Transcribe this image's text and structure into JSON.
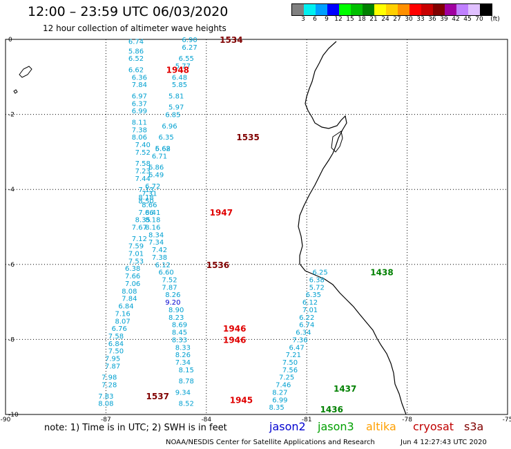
{
  "header": {
    "title": "12:00 – 23:59 UTC 06/03/2020",
    "subtitle": "12 hour collection of altimeter wave heights"
  },
  "color_scale": {
    "unit_label": "(ft)",
    "colors": [
      "#808080",
      "#00f0f0",
      "#00a0ff",
      "#0000ff",
      "#00ff00",
      "#00c000",
      "#008000",
      "#ffff00",
      "#ffd000",
      "#ff9000",
      "#ff0000",
      "#c80000",
      "#800000",
      "#a000a0",
      "#c080ff",
      "#e0c0ff",
      "#000000"
    ],
    "labels": [
      "3",
      "6",
      "9",
      "12",
      "15",
      "18",
      "21",
      "24",
      "27",
      "30",
      "33",
      "36",
      "39",
      "42",
      "45",
      "70"
    ]
  },
  "axes": {
    "x_ticks": [
      "-90",
      "-87",
      "-84",
      "-81",
      "-78",
      "-75"
    ],
    "y_ticks": [
      "0",
      "-2",
      "-4",
      "-6",
      "-8",
      "-10"
    ]
  },
  "chart_data": {
    "type": "scatter",
    "xlim": [
      -90,
      -75
    ],
    "ylim": [
      -10,
      0
    ],
    "grid": true,
    "tracks": [
      {
        "pass_time": "1534",
        "satellite": "cryosat",
        "points": [
          [
            -84.5,
            0
          ],
          [
            -84.5,
            -0.2
          ],
          [
            -84.6,
            -0.5
          ],
          [
            -84.7,
            -0.7
          ],
          [
            -84.8,
            -1.0
          ],
          [
            -84.8,
            -1.2
          ],
          [
            -84.9,
            -1.5
          ],
          [
            -84.9,
            -1.8
          ],
          [
            -85.0,
            -2.0
          ],
          [
            -85.1,
            -2.3
          ],
          [
            -85.2,
            -2.6
          ],
          [
            -85.3,
            -2.9
          ]
        ],
        "values": [
          "6.90",
          "6.27",
          "6.55",
          "5.77",
          "6.48",
          "5.85",
          "5.81",
          "5.97",
          "6.85",
          "6.96",
          "6.35",
          "5.68"
        ]
      },
      {
        "pass_time": "1535",
        "satellite": "cryosat",
        "points": [
          [
            -85.3,
            -2.9
          ],
          [
            -85.4,
            -3.1
          ],
          [
            -85.5,
            -3.4
          ],
          [
            -85.5,
            -3.6
          ],
          [
            -85.6,
            -3.9
          ],
          [
            -85.7,
            -4.1
          ],
          [
            -85.8,
            -4.3
          ],
          [
            -85.8,
            -4.6
          ],
          [
            -85.9,
            -4.8
          ],
          [
            -86.0,
            -5.0
          ],
          [
            -86.0,
            -5.3
          ],
          [
            -86.1,
            -5.5
          ],
          [
            -86.1,
            -5.7
          ],
          [
            -86.1,
            -5.9
          ]
        ],
        "values": [
          "6.62",
          "6.71",
          "6.86",
          "6.49",
          "6.72",
          "7.31",
          "8.50",
          "7.66",
          "8.35",
          "7.67",
          "7.12",
          "7.59",
          "7.01",
          "7.53"
        ]
      },
      {
        "pass_time": "1536",
        "satellite": "cryosat",
        "points": [
          [
            -86.2,
            -6.1
          ],
          [
            -86.2,
            -6.3
          ],
          [
            -86.2,
            -6.5
          ],
          [
            -86.3,
            -6.7
          ],
          [
            -86.3,
            -6.9
          ],
          [
            -86.4,
            -7.1
          ],
          [
            -86.5,
            -7.3
          ],
          [
            -86.5,
            -7.5
          ],
          [
            -86.6,
            -7.7
          ],
          [
            -86.7,
            -7.9
          ],
          [
            -86.7,
            -8.1
          ],
          [
            -86.7,
            -8.3
          ],
          [
            -86.8,
            -8.5
          ],
          [
            -86.8,
            -8.7
          ],
          [
            -86.9,
            -9.0
          ],
          [
            -86.9,
            -9.2
          ],
          [
            -87.0,
            -9.5
          ],
          [
            -87.0,
            -9.7
          ]
        ],
        "values": [
          "6.38",
          "7.66",
          "7.06",
          "8.08",
          "7.84",
          "6.84",
          "7.16",
          "8.07",
          "6.76",
          "7.58",
          "6.84",
          "7.50",
          "7.95",
          "7.87",
          "7.98",
          "7.28",
          "7.83",
          "8.08"
        ]
      },
      {
        "pass_time": "1537",
        "satellite": "cryosat",
        "points": [
          [
            -84.7,
            -9.4
          ],
          [
            -84.6,
            -9.7
          ]
        ],
        "values": [
          "9.34",
          "8.52"
        ]
      },
      {
        "pass_time": "1948",
        "satellite": "s3a",
        "points": [
          [
            -86.1,
            -0.05
          ],
          [
            -86.1,
            -0.3
          ],
          [
            -86.1,
            -0.5
          ],
          [
            -86.1,
            -0.8
          ],
          [
            -86.0,
            -1.0
          ],
          [
            -86.0,
            -1.2
          ],
          [
            -86.0,
            -1.5
          ],
          [
            -86.0,
            -1.7
          ],
          [
            -86.0,
            -1.9
          ],
          [
            -86.0,
            -2.2
          ],
          [
            -86.0,
            -2.4
          ],
          [
            -86.0,
            -2.6
          ],
          [
            -85.9,
            -2.8
          ],
          [
            -85.9,
            -3.0
          ],
          [
            -85.9,
            -3.3
          ],
          [
            -85.9,
            -3.5
          ],
          [
            -85.9,
            -3.7
          ],
          [
            -85.8,
            -4.0
          ],
          [
            -85.8,
            -4.2
          ]
        ],
        "values": [
          "6.74",
          "5.86",
          "6.52",
          "6.62",
          "6.36",
          "7.84",
          "6.97",
          "6.37",
          "6.99",
          "8.11",
          "7.38",
          "8.06",
          "7.40",
          "7.52",
          "7.58",
          "7.23",
          "7.44",
          "7.13",
          "8.18"
        ]
      },
      {
        "pass_time": "1947",
        "satellite": "s3a",
        "points": [
          [
            -85.7,
            -4.4
          ],
          [
            -85.6,
            -4.6
          ],
          [
            -85.6,
            -4.8
          ],
          [
            -85.6,
            -5.0
          ],
          [
            -85.5,
            -5.2
          ],
          [
            -85.5,
            -5.4
          ],
          [
            -85.4,
            -5.6
          ],
          [
            -85.4,
            -5.8
          ],
          [
            -85.3,
            -6.0
          ],
          [
            -85.2,
            -6.2
          ]
        ],
        "values": [
          "8.66",
          "8.41",
          "8.18",
          "8.16",
          "8.34",
          "7.34",
          "7.42",
          "7.38",
          "6.12",
          "6.60"
        ]
      },
      {
        "pass_time": "1946",
        "satellite": "s3a",
        "points": [
          [
            -85.1,
            -6.4
          ],
          [
            -85.1,
            -6.6
          ],
          [
            -85.0,
            -6.8
          ],
          [
            -85.0,
            -7.0
          ],
          [
            -84.9,
            -7.2
          ],
          [
            -84.9,
            -7.4
          ],
          [
            -84.8,
            -7.6
          ],
          [
            -84.8,
            -7.8
          ],
          [
            -84.8,
            -8.0
          ],
          [
            -84.7,
            -8.2
          ],
          [
            -84.7,
            -8.4
          ],
          [
            -84.7,
            -8.6
          ],
          [
            -84.6,
            -8.8
          ]
        ],
        "values": [
          "7.52",
          "7.87",
          "8.26",
          "9.20",
          "8.90",
          "8.23",
          "8.69",
          "8.45",
          "8.33",
          "8.33",
          "8.26",
          "7.34",
          "8.15"
        ]
      },
      {
        "pass_time": "1945",
        "satellite": "s3a",
        "points": [
          [
            -84.6,
            -9.1
          ]
        ],
        "values": [
          "8.78"
        ]
      },
      {
        "pass_time": "1438",
        "satellite": "jason3",
        "points": [
          [
            -80.6,
            -6.2
          ],
          [
            -80.7,
            -6.4
          ],
          [
            -80.7,
            -6.6
          ],
          [
            -80.8,
            -6.8
          ],
          [
            -80.9,
            -7.0
          ],
          [
            -80.9,
            -7.2
          ],
          [
            -81.0,
            -7.4
          ],
          [
            -81.0,
            -7.6
          ],
          [
            -81.1,
            -7.8
          ],
          [
            -81.2,
            -8.0
          ],
          [
            -81.3,
            -8.2
          ],
          [
            -81.4,
            -8.4
          ],
          [
            -81.5,
            -8.6
          ],
          [
            -81.5,
            -8.8
          ],
          [
            -81.6,
            -9.0
          ],
          [
            -81.7,
            -9.2
          ]
        ],
        "values": [
          "6.25",
          "6.38",
          "5.72",
          "6.35",
          "6.12",
          "7.01",
          "6.22",
          "6.74",
          "6.34",
          "7.36",
          "6.47",
          "7.21",
          "7.50",
          "7.56",
          "7.25",
          "7.46"
        ]
      },
      {
        "pass_time": "1437",
        "satellite": "jason3",
        "points": [
          [
            -81.8,
            -9.4
          ],
          [
            -81.8,
            -9.6
          ]
        ],
        "values": [
          "8.27",
          "6.99"
        ]
      },
      {
        "pass_time": "1436",
        "satellite": "jason3",
        "points": [
          [
            -81.9,
            -9.8
          ]
        ],
        "values": [
          "8.35"
        ]
      }
    ],
    "track_colors": {
      "cryosat": "#00a0d0",
      "s3a": "#00a0d0",
      "jason3": "#00a0d0"
    },
    "time_label_colors": {
      "cryosat": "#800000",
      "s3a": "#e00000",
      "jason3": "#008000"
    },
    "time_labels": [
      {
        "text": "1534",
        "satellite": "cryosat",
        "at": [
          -83.6,
          0
        ]
      },
      {
        "text": "1535",
        "satellite": "cryosat",
        "at": [
          -83.1,
          -2.6
        ]
      },
      {
        "text": "1536",
        "satellite": "cryosat",
        "at": [
          -84.0,
          -6.0
        ]
      },
      {
        "text": "1537",
        "satellite": "cryosat",
        "at": [
          -85.8,
          -9.5
        ]
      },
      {
        "text": "1948",
        "satellite": "s3a",
        "at": [
          -85.2,
          -0.8
        ]
      },
      {
        "text": "1947",
        "satellite": "s3a",
        "at": [
          -83.9,
          -4.6
        ]
      },
      {
        "text": "1946",
        "satellite": "s3a",
        "at": [
          -83.5,
          -7.7
        ]
      },
      {
        "text": "1946",
        "satellite": "s3a",
        "at": [
          -83.5,
          -8.0
        ]
      },
      {
        "text": "1945",
        "satellite": "s3a",
        "at": [
          -83.3,
          -9.6
        ]
      },
      {
        "text": "1438",
        "satellite": "jason3",
        "at": [
          -79.1,
          -6.2
        ]
      },
      {
        "text": "1437",
        "satellite": "jason3",
        "at": [
          -80.2,
          -9.3
        ]
      },
      {
        "text": "1436",
        "satellite": "jason3",
        "at": [
          -80.6,
          -9.85
        ]
      }
    ]
  },
  "legend_note": "note:  1) Time is in UTC;  2) SWH is in feet",
  "satellites": [
    {
      "name": "jason2",
      "color": "#0000d0"
    },
    {
      "name": "jason3",
      "color": "#00a000"
    },
    {
      "name": "altika",
      "color": "#ffa000"
    },
    {
      "name": "cryosat",
      "color": "#c00000"
    },
    {
      "name": "s3a",
      "color": "#800000"
    }
  ],
  "footer": {
    "credit": "NOAA/NESDIS Center for Satellite Applications and Research",
    "timestamp": "Jun  4 12:27:43 UTC 2020"
  }
}
